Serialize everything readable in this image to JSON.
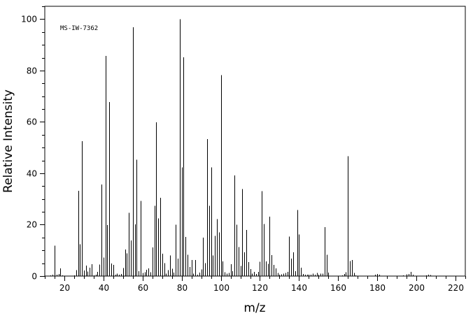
{
  "chart_data": {
    "type": "bar",
    "title": "",
    "annotation": "MS-IW-7362",
    "xlabel": "m/z",
    "ylabel": "Relative Intensity",
    "xlim": [
      10,
      225
    ],
    "ylim": [
      0,
      105
    ],
    "x_ticks": [
      20,
      40,
      60,
      80,
      100,
      120,
      140,
      160,
      180,
      200,
      220
    ],
    "y_ticks": [
      0,
      20,
      40,
      60,
      80,
      100
    ],
    "x_minor_step": 5,
    "y_minor_step": 5,
    "grid": false,
    "series": [
      {
        "peaks": [
          [
            13,
            0.3
          ],
          [
            14,
            0.6
          ],
          [
            15,
            11.8
          ],
          [
            16,
            0.5
          ],
          [
            17,
            0.8
          ],
          [
            18,
            3.0
          ],
          [
            19,
            0.3
          ],
          [
            21,
            0.2
          ],
          [
            25,
            0.3
          ],
          [
            26,
            2.3
          ],
          [
            27,
            33.2
          ],
          [
            28,
            12.4
          ],
          [
            29,
            52.5
          ],
          [
            30,
            2.2
          ],
          [
            31,
            4.1
          ],
          [
            32,
            1.8
          ],
          [
            33,
            3.2
          ],
          [
            34,
            4.6
          ],
          [
            35,
            0.3
          ],
          [
            36,
            0.5
          ],
          [
            37,
            1.6
          ],
          [
            38,
            4.5
          ],
          [
            39,
            35.6
          ],
          [
            40,
            7.2
          ],
          [
            41,
            85.7
          ],
          [
            42,
            19.8
          ],
          [
            43,
            67.7
          ],
          [
            44,
            4.9
          ],
          [
            45,
            4.3
          ],
          [
            46,
            0.5
          ],
          [
            47,
            0.9
          ],
          [
            48,
            0.5
          ],
          [
            49,
            0.8
          ],
          [
            50,
            3.1
          ],
          [
            51,
            10.3
          ],
          [
            52,
            8.9
          ],
          [
            53,
            24.6
          ],
          [
            54,
            13.9
          ],
          [
            55,
            96.8
          ],
          [
            56,
            20.1
          ],
          [
            57,
            45.3
          ],
          [
            58,
            1.9
          ],
          [
            59,
            29.3
          ],
          [
            60,
            1.2
          ],
          [
            61,
            1.5
          ],
          [
            62,
            2.5
          ],
          [
            63,
            3.0
          ],
          [
            64,
            1.5
          ],
          [
            65,
            11.1
          ],
          [
            66,
            27.3
          ],
          [
            67,
            59.8
          ],
          [
            68,
            22.5
          ],
          [
            69,
            30.5
          ],
          [
            70,
            8.7
          ],
          [
            71,
            5.0
          ],
          [
            72,
            0.9
          ],
          [
            73,
            2.3
          ],
          [
            74,
            8.0
          ],
          [
            75,
            2.8
          ],
          [
            76,
            1.3
          ],
          [
            77,
            20.0
          ],
          [
            78,
            6.8
          ],
          [
            79,
            100.0
          ],
          [
            80,
            42.3
          ],
          [
            81,
            85.1
          ],
          [
            82,
            15.3
          ],
          [
            83,
            8.3
          ],
          [
            84,
            3.5
          ],
          [
            85,
            6.3
          ],
          [
            86,
            1.0
          ],
          [
            87,
            6.3
          ],
          [
            88,
            0.5
          ],
          [
            89,
            1.3
          ],
          [
            90,
            2.6
          ],
          [
            91,
            15.0
          ],
          [
            92,
            5.0
          ],
          [
            93,
            53.3
          ],
          [
            94,
            27.3
          ],
          [
            95,
            42.3
          ],
          [
            96,
            8.0
          ],
          [
            97,
            15.6
          ],
          [
            98,
            22.2
          ],
          [
            99,
            17.0
          ],
          [
            100,
            78.2
          ],
          [
            101,
            5.7
          ],
          [
            102,
            1.5
          ],
          [
            103,
            1.0
          ],
          [
            104,
            1.2
          ],
          [
            105,
            4.6
          ],
          [
            106,
            1.9
          ],
          [
            107,
            39.2
          ],
          [
            108,
            20.0
          ],
          [
            109,
            11.3
          ],
          [
            110,
            4.0
          ],
          [
            111,
            33.8
          ],
          [
            112,
            9.3
          ],
          [
            113,
            17.9
          ],
          [
            114,
            5.5
          ],
          [
            115,
            2.7
          ],
          [
            116,
            1.0
          ],
          [
            117,
            1.6
          ],
          [
            118,
            0.8
          ],
          [
            119,
            1.7
          ],
          [
            120,
            5.6
          ],
          [
            121,
            33.1
          ],
          [
            122,
            20.3
          ],
          [
            123,
            5.7
          ],
          [
            124,
            4.8
          ],
          [
            125,
            23.1
          ],
          [
            126,
            8.1
          ],
          [
            127,
            4.4
          ],
          [
            128,
            3.0
          ],
          [
            129,
            1.2
          ],
          [
            130,
            0.6
          ],
          [
            131,
            0.7
          ],
          [
            132,
            1.0
          ],
          [
            133,
            1.2
          ],
          [
            134,
            1.7
          ],
          [
            135,
            15.4
          ],
          [
            136,
            6.8
          ],
          [
            137,
            9.3
          ],
          [
            138,
            1.9
          ],
          [
            139,
            25.7
          ],
          [
            140,
            16.2
          ],
          [
            141,
            3.2
          ],
          [
            142,
            0.8
          ],
          [
            143,
            0.5
          ],
          [
            144,
            0.5
          ],
          [
            145,
            0.5
          ],
          [
            146,
            0.6
          ],
          [
            147,
            1.0
          ],
          [
            148,
            0.5
          ],
          [
            149,
            1.2
          ],
          [
            150,
            0.5
          ],
          [
            151,
            1.0
          ],
          [
            152,
            1.0
          ],
          [
            153,
            19.0
          ],
          [
            154,
            8.3
          ],
          [
            155,
            1.3
          ],
          [
            156,
            0.2
          ],
          [
            160,
            0.2
          ],
          [
            162,
            0.3
          ],
          [
            163,
            0.8
          ],
          [
            164,
            1.5
          ],
          [
            165,
            46.7
          ],
          [
            166,
            5.9
          ],
          [
            167,
            6.2
          ],
          [
            168,
            1.2
          ],
          [
            169,
            0.3
          ],
          [
            170,
            0.2
          ],
          [
            172,
            0.2
          ],
          [
            174,
            0.2
          ],
          [
            178,
            0.2
          ],
          [
            179,
            0.5
          ],
          [
            180,
            0.8
          ],
          [
            181,
            0.5
          ],
          [
            185,
            0.2
          ],
          [
            193,
            0.3
          ],
          [
            195,
            0.7
          ],
          [
            196,
            0.8
          ],
          [
            197,
            1.6
          ],
          [
            198,
            0.5
          ],
          [
            205,
            0.3
          ],
          [
            206,
            0.6
          ],
          [
            207,
            0.4
          ],
          [
            220,
            0.2
          ]
        ]
      }
    ]
  }
}
